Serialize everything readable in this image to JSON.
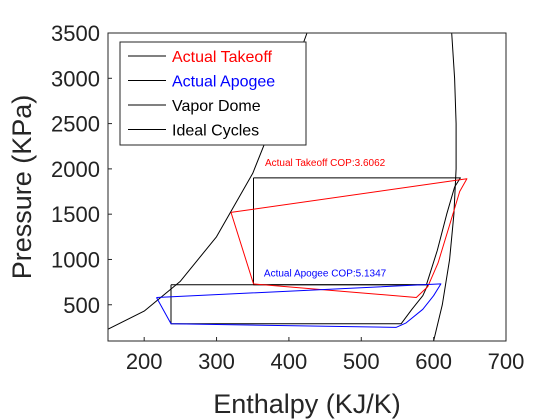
{
  "chart_data": {
    "type": "line",
    "title": "",
    "xlabel": "Enthalpy (KJ/K)",
    "ylabel": "Pressure (KPa)",
    "xlim": [
      150,
      700
    ],
    "ylim": [
      100,
      3500
    ],
    "xticks": [
      200,
      300,
      400,
      500,
      600,
      700
    ],
    "yticks": [
      500,
      1000,
      1500,
      2000,
      2500,
      3000,
      3500
    ],
    "grid": false,
    "legend": {
      "placement": "top-left",
      "entries": [
        {
          "label": "Actual Takeoff",
          "color": "#ff0000"
        },
        {
          "label": "Actual Apogee",
          "color": "#0000ff"
        },
        {
          "label": "Vapor Dome",
          "color": "#000000"
        },
        {
          "label": "Ideal Cycles",
          "color": "#000000"
        }
      ]
    },
    "series": [
      {
        "name": "Vapor Dome",
        "color": "#000000",
        "points": [
          [
            150,
            230
          ],
          [
            200,
            430
          ],
          [
            250,
            760
          ],
          [
            300,
            1250
          ],
          [
            350,
            1950
          ],
          [
            400,
            2950
          ],
          [
            425,
            3500
          ]
        ]
      },
      {
        "name": "Vapor Dome",
        "color": "#000000",
        "points": [
          [
            625,
            3500
          ],
          [
            629,
            3000
          ],
          [
            631,
            2500
          ],
          [
            631,
            2000
          ],
          [
            628,
            1500
          ],
          [
            622,
            1000
          ],
          [
            612,
            500
          ],
          [
            600,
            100
          ]
        ]
      },
      {
        "name": "Ideal Cycles",
        "color": "#000000",
        "points": [
          [
            351,
            1900
          ],
          [
            637,
            1900
          ],
          [
            629,
            1800
          ],
          [
            618,
            1500
          ],
          [
            605,
            1100
          ],
          [
            590,
            720
          ],
          [
            351,
            720
          ],
          [
            351,
            1900
          ]
        ]
      },
      {
        "name": "Ideal Cycles",
        "color": "#000000",
        "points": [
          [
            237,
            720
          ],
          [
            592,
            720
          ],
          [
            585,
            600
          ],
          [
            570,
            450
          ],
          [
            555,
            290
          ],
          [
            237,
            290
          ],
          [
            237,
            720
          ]
        ]
      },
      {
        "name": "Actual Takeoff",
        "color": "#ff0000",
        "points": [
          [
            320,
            1520
          ],
          [
            646,
            1890
          ],
          [
            636,
            1750
          ],
          [
            622,
            1380
          ],
          [
            606,
            960
          ],
          [
            592,
            700
          ],
          [
            576,
            580
          ],
          [
            351,
            730
          ],
          [
            320,
            1520
          ]
        ]
      },
      {
        "name": "Actual Apogee",
        "color": "#0000ff",
        "points": [
          [
            217,
            580
          ],
          [
            610,
            730
          ],
          [
            600,
            600
          ],
          [
            585,
            450
          ],
          [
            562,
            300
          ],
          [
            548,
            250
          ],
          [
            237,
            290
          ],
          [
            217,
            580
          ]
        ]
      }
    ],
    "annotations": [
      {
        "text": "Actual Takeoff COP:3.6062",
        "x": 450,
        "y": 2000,
        "color": "#ff0000"
      },
      {
        "text": "Actual Apogee COP:5.1347",
        "x": 450,
        "y": 780,
        "color": "#0000ff"
      }
    ]
  }
}
